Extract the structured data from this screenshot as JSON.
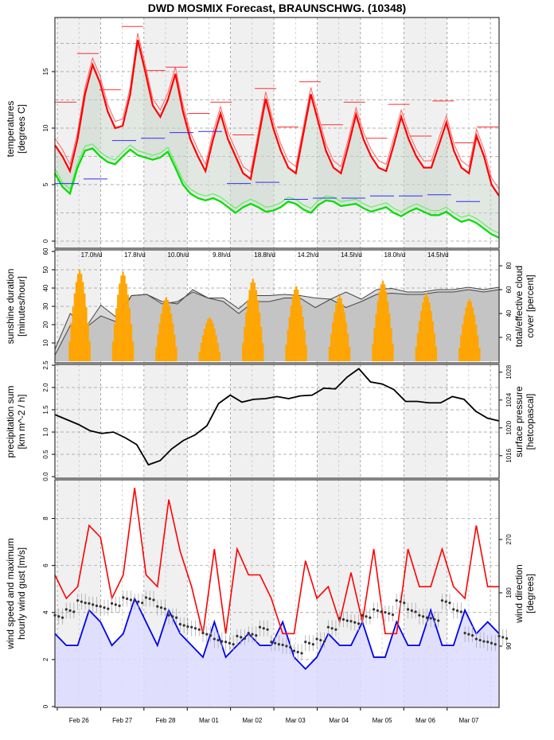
{
  "title": "DWD MOSMIX Forecast, BRAUNSCHWG. (10348)",
  "chart_data": [
    {
      "type": "line",
      "name": "temperatures",
      "ylabel": [
        "temperatures",
        "[degrees C]"
      ],
      "ylim": [
        -0.5,
        19.5
      ],
      "yticks": [
        0,
        5,
        10,
        15
      ],
      "grid": true,
      "series": [
        {
          "name": "temperature",
          "color": "#ff0000",
          "values": [
            8.5,
            7.5,
            6.2,
            9,
            13,
            15.6,
            14,
            11.5,
            10,
            10.2,
            13,
            17.8,
            15,
            12,
            11,
            12.5,
            14.8,
            11.5,
            9,
            7.5,
            6.2,
            9,
            11.3,
            9,
            7.5,
            6,
            5.5,
            9,
            12.6,
            10,
            8,
            6.5,
            6,
            9.5,
            13,
            10.5,
            8,
            6.5,
            6,
            8.5,
            11.2,
            9,
            7.5,
            6.5,
            6.2,
            8.5,
            11,
            9,
            7.5,
            6.5,
            6.5,
            8.5,
            10.5,
            8,
            6.5,
            6,
            9.3,
            7.5,
            5,
            4
          ]
        },
        {
          "name": "dewpoint",
          "color": "#00dd00",
          "values": [
            6,
            4.8,
            4.2,
            6.5,
            8.0,
            8.2,
            7.5,
            7,
            6.8,
            7.5,
            8.1,
            7.6,
            7.4,
            7.2,
            7.4,
            7.9,
            6.5,
            5,
            4.2,
            3.8,
            3.6,
            3.8,
            3.5,
            3,
            2.5,
            3,
            3.3,
            3,
            2.6,
            2.7,
            3,
            3.5,
            3.3,
            2.8,
            2.5,
            3.2,
            3.6,
            3.5,
            3.1,
            3.2,
            3.3,
            2.9,
            2.6,
            2.8,
            3.0,
            2.5,
            2.2,
            2.6,
            2.9,
            2.6,
            2.3,
            2.3,
            2.6,
            2.1,
            1.7,
            1.9,
            1.6,
            1.1,
            0.6,
            0.3
          ]
        }
      ],
      "daily_max_marks": [
        12.3,
        16.6,
        13.4,
        19.0,
        15.1,
        15.4,
        11.3,
        12.3,
        9.4,
        13.5,
        10.1,
        14.1,
        10.3,
        12.3,
        9.1,
        12.1,
        9.3,
        12.4,
        8.7,
        10.1
      ],
      "daily_min_marks": [
        5.1,
        5.5,
        8.9,
        9.1,
        9.6,
        9.7,
        5.1,
        5.2,
        3.7,
        3.8,
        3.8,
        4.0,
        4.0,
        4.1,
        3.5
      ]
    },
    {
      "type": "bar",
      "name": "sunshine",
      "ylabel": [
        "sunshine duration",
        "[minutes/hour]"
      ],
      "ylabel_right": [
        "total/effective cloud",
        "cover [percent]"
      ],
      "ylim": [
        0,
        60
      ],
      "yticks": [
        10,
        20,
        30,
        40,
        50,
        60
      ],
      "yticks_right": [
        20,
        40,
        60,
        80
      ],
      "daily_sunshine_labels": [
        "17.0h/d",
        "17.8h/d",
        "10.0h/d",
        "9.8h/d",
        "18.8h/d",
        "14.2h/d",
        "14.5h/d",
        "18.0h/d",
        "14.5h/d"
      ],
      "sunshine_daily_peak": [
        50,
        49,
        35,
        24,
        45,
        41,
        36,
        44,
        37,
        34
      ],
      "cloud_total": [
        10,
        40,
        28,
        47,
        37,
        55,
        56,
        50,
        48,
        60,
        53,
        53,
        44,
        55,
        55,
        56,
        55,
        53,
        52,
        58,
        52,
        60,
        61,
        58,
        58,
        60,
        60,
        62,
        60,
        62
      ],
      "cloud_effective": [
        5,
        30,
        28,
        38,
        33,
        55,
        56,
        48,
        50,
        58,
        53,
        50,
        40,
        50,
        50,
        53,
        53,
        45,
        52,
        45,
        50,
        56,
        57,
        56,
        56,
        58,
        58,
        60,
        58,
        60
      ]
    },
    {
      "type": "line",
      "name": "precipitation_pressure",
      "ylabel": [
        "precipitation sum",
        "[km m^-2 / h]"
      ],
      "ylabel_right": [
        "surface pressure",
        "[hetcopascal]"
      ],
      "ylim": [
        0,
        2.5
      ],
      "yticks": [
        0.0,
        0.5,
        1.0,
        1.5,
        2.0,
        2.5
      ],
      "yticks_right": [
        1016,
        1020,
        1024,
        1028
      ],
      "pressure_ylim": [
        1013,
        1029
      ],
      "pressure": [
        1021.9,
        1021.2,
        1020.5,
        1019.6,
        1019.2,
        1019.4,
        1018.6,
        1017.6,
        1014.7,
        1015.3,
        1017,
        1018.2,
        1019,
        1020.3,
        1023.5,
        1024.7,
        1023.7,
        1024.1,
        1024.2,
        1024.5,
        1024.2,
        1024.6,
        1024.7,
        1025.7,
        1025.6,
        1027.3,
        1028.5,
        1026.6,
        1026.3,
        1025.5,
        1023.8,
        1023.8,
        1023.6,
        1023.6,
        1024.5,
        1024.1,
        1022.4,
        1021.4,
        1021.0
      ]
    },
    {
      "type": "line",
      "name": "wind",
      "ylabel": [
        "wind speed and maximum",
        "hourly wind gust [m/s]"
      ],
      "ylabel_right": [
        "wind direction",
        "[degrees]"
      ],
      "ylim": [
        0,
        9.5
      ],
      "yticks": [
        0,
        2,
        4,
        6,
        8
      ],
      "yticks_right": [
        90,
        180,
        270
      ],
      "xticks": [
        "Feb 26",
        "Feb 27",
        "Feb 28",
        "Mar 01",
        "Mar 02",
        "Mar 03",
        "Mar 04",
        "Mar 05",
        "Mar 06",
        "Mar 07"
      ],
      "gust": [
        5.6,
        4.6,
        5.1,
        7.7,
        7.2,
        4.6,
        5.6,
        9.3,
        5.6,
        5.1,
        8.8,
        6.6,
        5.1,
        3.1,
        6.7,
        3.1,
        6.7,
        5.6,
        5.6,
        4.6,
        3.1,
        3.1,
        6.2,
        4.6,
        5.1,
        3.6,
        5.7,
        3.6,
        6.7,
        3.1,
        3.1,
        6.7,
        5.1,
        5.1,
        6.7,
        5.1,
        4.6,
        7.7,
        5.1,
        5.1
      ],
      "wind_speed": [
        3.1,
        2.6,
        2.6,
        4.1,
        3.6,
        2.6,
        3.1,
        4.6,
        3.6,
        2.6,
        4.1,
        3.1,
        2.6,
        2.1,
        3.6,
        2.1,
        2.6,
        3.1,
        2.6,
        2.6,
        3.6,
        2.1,
        1.6,
        2.1,
        3.1,
        2.6,
        2.6,
        3.6,
        2.1,
        2.1,
        3.6,
        2.6,
        2.6,
        4.1,
        2.6,
        2.6,
        4.1,
        3.1,
        3.6,
        3.1
      ],
      "wind_direction": [
        140,
        150,
        165,
        160,
        155,
        160,
        170,
        165,
        170,
        155,
        140,
        125,
        120,
        110,
        100,
        95,
        105,
        110,
        120,
        95,
        90,
        80,
        95,
        100,
        120,
        135,
        130,
        140,
        150,
        145,
        165,
        150,
        140,
        135,
        165,
        150,
        110,
        100,
        95,
        105
      ]
    }
  ]
}
